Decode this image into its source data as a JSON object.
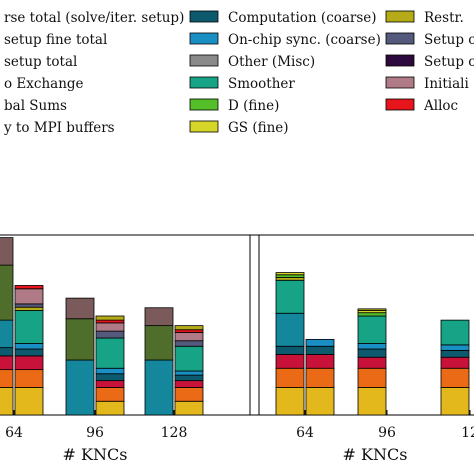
{
  "legend": {
    "columns": [
      [
        {
          "label": "rse total (solve/iter. setup)",
          "color": ""
        },
        {
          "label": "setup fine total",
          "color": ""
        },
        {
          "label": "setup total",
          "color": ""
        },
        {
          "label": "o Exchange",
          "color": ""
        },
        {
          "label": "bal Sums",
          "color": ""
        },
        {
          "label": "y to MPI buffers",
          "color": ""
        }
      ],
      [
        {
          "label": "Computation (coarse)",
          "color": "#0d5a6e"
        },
        {
          "label": "On-chip sync. (coarse)",
          "color": "#1a8fc4"
        },
        {
          "label": "Other (Misc)",
          "color": "#8a8a8a"
        },
        {
          "label": "Smoother",
          "color": "#17a385"
        },
        {
          "label": "D (fine)",
          "color": "#55bf2a"
        },
        {
          "label": "GS (fine)",
          "color": "#d6d62a"
        }
      ],
      [
        {
          "label": "Restr.",
          "color": "#b5aa17"
        },
        {
          "label": "Setup c",
          "color": "#555a7c"
        },
        {
          "label": "Setup c",
          "color": "#2d0a3d"
        },
        {
          "label": "Initiali",
          "color": "#b07b86"
        },
        {
          "label": "Alloc",
          "color": "#e8161c"
        }
      ]
    ]
  },
  "chart_data": [
    {
      "type": "bar",
      "stacked": true,
      "xlabel": "# KNCs",
      "categories": [
        "64",
        "96",
        "128"
      ],
      "grid": false,
      "bars": [
        {
          "category": "64",
          "left_column": [
            {
              "name": "D/GS",
              "value": 1.0,
              "color": "#e2b81c"
            },
            {
              "name": "orange",
              "value": 0.65,
              "color": "#ea6a16"
            },
            {
              "name": "crimson",
              "value": 0.5,
              "color": "#c8123a"
            },
            {
              "name": "teal-dark",
              "value": 0.3,
              "color": "#0d5a6e"
            },
            {
              "name": "teal",
              "value": 1.0,
              "color": "#15879c"
            },
            {
              "name": "olive",
              "value": 2.0,
              "color": "#4f6e2c"
            },
            {
              "name": "brown",
              "value": 1.0,
              "color": "#7a5a5a"
            }
          ],
          "right_column": [
            {
              "name": "GS (fine)",
              "value": 1.0,
              "color": "#e2b81c"
            },
            {
              "name": "orange",
              "value": 0.65,
              "color": "#ea6a16"
            },
            {
              "name": "crimson",
              "value": 0.5,
              "color": "#c8123a"
            },
            {
              "name": "Computation (coarse)",
              "value": 0.25,
              "color": "#0d5a6e"
            },
            {
              "name": "On-chip sync. (coarse)",
              "value": 0.2,
              "color": "#1a8fc4"
            },
            {
              "name": "Smoother",
              "value": 1.2,
              "color": "#17a385"
            },
            {
              "name": "Restr.",
              "value": 0.12,
              "color": "#b5aa17"
            },
            {
              "name": "Setup",
              "value": 0.12,
              "color": "#555a7c"
            },
            {
              "name": "Initiali",
              "value": 0.55,
              "color": "#b07b86"
            },
            {
              "name": "Alloc",
              "value": 0.12,
              "color": "#e8161c"
            }
          ]
        },
        {
          "category": "96",
          "left_column": [
            {
              "name": "teal",
              "value": 2.0,
              "color": "#15879c"
            },
            {
              "name": "olive",
              "value": 1.5,
              "color": "#4f6e2c"
            },
            {
              "name": "brown",
              "value": 0.75,
              "color": "#7a5a5a"
            }
          ],
          "right_column": [
            {
              "name": "GS (fine)",
              "value": 0.5,
              "color": "#e2b81c"
            },
            {
              "name": "orange",
              "value": 0.5,
              "color": "#ea6a16"
            },
            {
              "name": "crimson",
              "value": 0.25,
              "color": "#c8123a"
            },
            {
              "name": "Computation (coarse)",
              "value": 0.25,
              "color": "#0d5a6e"
            },
            {
              "name": "On-chip sync. (coarse)",
              "value": 0.2,
              "color": "#1a8fc4"
            },
            {
              "name": "Smoother",
              "value": 1.1,
              "color": "#17a385"
            },
            {
              "name": "Setup",
              "value": 0.25,
              "color": "#555a7c"
            },
            {
              "name": "Initiali",
              "value": 0.3,
              "color": "#b07b86"
            },
            {
              "name": "Alloc",
              "value": 0.1,
              "color": "#e8161c"
            },
            {
              "name": "Restr.",
              "value": 0.15,
              "color": "#b5aa17"
            }
          ]
        },
        {
          "category": "128",
          "left_column": [
            {
              "name": "teal",
              "value": 2.0,
              "color": "#15879c"
            },
            {
              "name": "olive",
              "value": 1.25,
              "color": "#4f6e2c"
            },
            {
              "name": "brown",
              "value": 0.65,
              "color": "#7a5a5a"
            }
          ],
          "right_column": [
            {
              "name": "GS (fine)",
              "value": 0.5,
              "color": "#e2b81c"
            },
            {
              "name": "orange",
              "value": 0.5,
              "color": "#ea6a16"
            },
            {
              "name": "crimson",
              "value": 0.25,
              "color": "#c8123a"
            },
            {
              "name": "Computation (coarse)",
              "value": 0.2,
              "color": "#0d5a6e"
            },
            {
              "name": "On-chip sync. (coarse)",
              "value": 0.15,
              "color": "#1a8fc4"
            },
            {
              "name": "Smoother",
              "value": 0.9,
              "color": "#17a385"
            },
            {
              "name": "Setup",
              "value": 0.2,
              "color": "#555a7c"
            },
            {
              "name": "Initiali",
              "value": 0.3,
              "color": "#b07b86"
            },
            {
              "name": "Alloc",
              "value": 0.1,
              "color": "#e8161c"
            },
            {
              "name": "Restr.",
              "value": 0.15,
              "color": "#b5aa17"
            }
          ]
        }
      ]
    },
    {
      "type": "bar",
      "stacked": true,
      "xlabel": "# KNCs",
      "categories": [
        "64",
        "96",
        "12"
      ],
      "grid": false,
      "bars": [
        {
          "category": "64",
          "left_column": [
            {
              "name": "GS (fine)",
              "value": 1.0,
              "color": "#e2b81c"
            },
            {
              "name": "orange",
              "value": 0.7,
              "color": "#ea6a16"
            },
            {
              "name": "crimson",
              "value": 0.5,
              "color": "#c8123a"
            },
            {
              "name": "Computation (coarse)",
              "value": 0.3,
              "color": "#0d5a6e"
            },
            {
              "name": "teal",
              "value": 1.2,
              "color": "#15879c"
            },
            {
              "name": "Smoother",
              "value": 1.2,
              "color": "#17a385"
            },
            {
              "name": "Restr.",
              "value": 0.1,
              "color": "#b5aa17"
            },
            {
              "name": "D (fine)",
              "value": 0.1,
              "color": "#55bf2a"
            },
            {
              "name": "GS top",
              "value": 0.08,
              "color": "#d6d62a"
            }
          ],
          "right_column": [
            {
              "name": "GS (fine)",
              "value": 1.0,
              "color": "#e2b81c"
            },
            {
              "name": "orange",
              "value": 0.7,
              "color": "#ea6a16"
            },
            {
              "name": "crimson",
              "value": 0.5,
              "color": "#c8123a"
            },
            {
              "name": "Computation (coarse)",
              "value": 0.3,
              "color": "#0d5a6e"
            },
            {
              "name": "On-chip sync. (coarse)",
              "value": 0.25,
              "color": "#1a8fc4"
            }
          ]
        },
        {
          "category": "96",
          "left_column": [
            {
              "name": "GS (fine)",
              "value": 1.0,
              "color": "#e2b81c"
            },
            {
              "name": "orange",
              "value": 0.7,
              "color": "#ea6a16"
            },
            {
              "name": "crimson",
              "value": 0.4,
              "color": "#c8123a"
            },
            {
              "name": "Computation (coarse)",
              "value": 0.3,
              "color": "#0d5a6e"
            },
            {
              "name": "On-chip sync. (coarse)",
              "value": 0.2,
              "color": "#1a8fc4"
            },
            {
              "name": "Smoother",
              "value": 1.0,
              "color": "#17a385"
            },
            {
              "name": "D (fine)",
              "value": 0.12,
              "color": "#55bf2a"
            },
            {
              "name": "GS top",
              "value": 0.08,
              "color": "#d6d62a"
            },
            {
              "name": "Restr.",
              "value": 0.06,
              "color": "#b5aa17"
            }
          ],
          "right_column": []
        },
        {
          "category": "12",
          "left_column": [
            {
              "name": "GS (fine)",
              "value": 1.0,
              "color": "#e2b81c"
            },
            {
              "name": "orange",
              "value": 0.7,
              "color": "#ea6a16"
            },
            {
              "name": "crimson",
              "value": 0.4,
              "color": "#c8123a"
            },
            {
              "name": "Computation (coarse)",
              "value": 0.25,
              "color": "#0d5a6e"
            },
            {
              "name": "On-chip sync. (coarse)",
              "value": 0.2,
              "color": "#1a8fc4"
            },
            {
              "name": "Smoother",
              "value": 0.9,
              "color": "#17a385"
            }
          ],
          "right_column": []
        }
      ]
    }
  ]
}
